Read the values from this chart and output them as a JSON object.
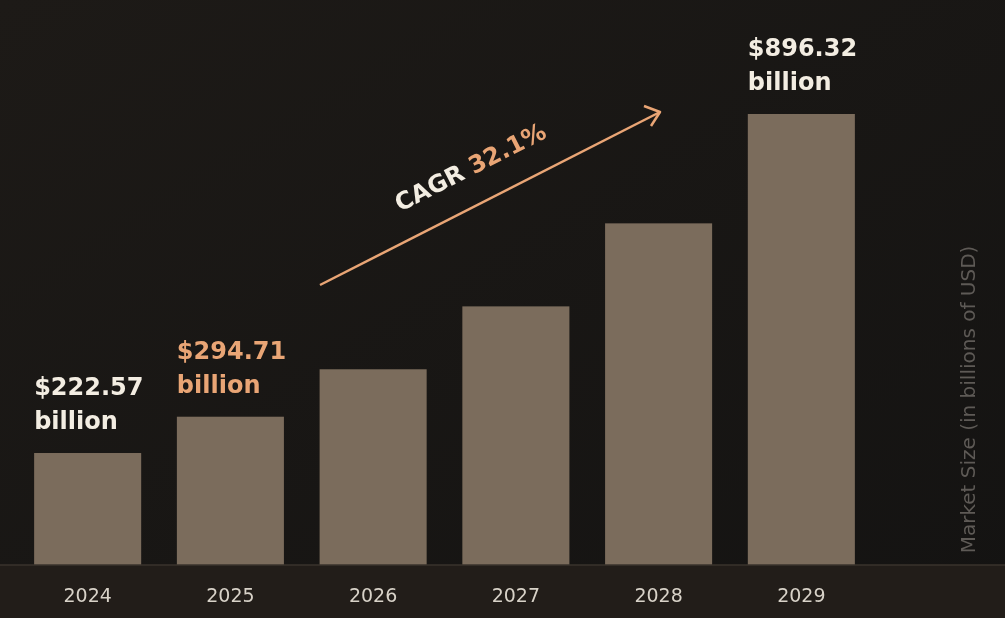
{
  "chart_data": {
    "type": "bar",
    "ylabel": "Market Size (in billions of USD)",
    "categories": [
      "2024",
      "2025",
      "2026",
      "2027",
      "2028",
      "2029"
    ],
    "values": [
      222.57,
      294.71,
      389,
      514,
      679,
      896.32
    ],
    "value_labels": [
      "$222.57 billion",
      "$294.71 billion",
      null,
      null,
      null,
      "$896.32 billion"
    ],
    "color": "#7b6c5c",
    "annotations": [
      "CAGR 32.1%"
    ]
  }
}
